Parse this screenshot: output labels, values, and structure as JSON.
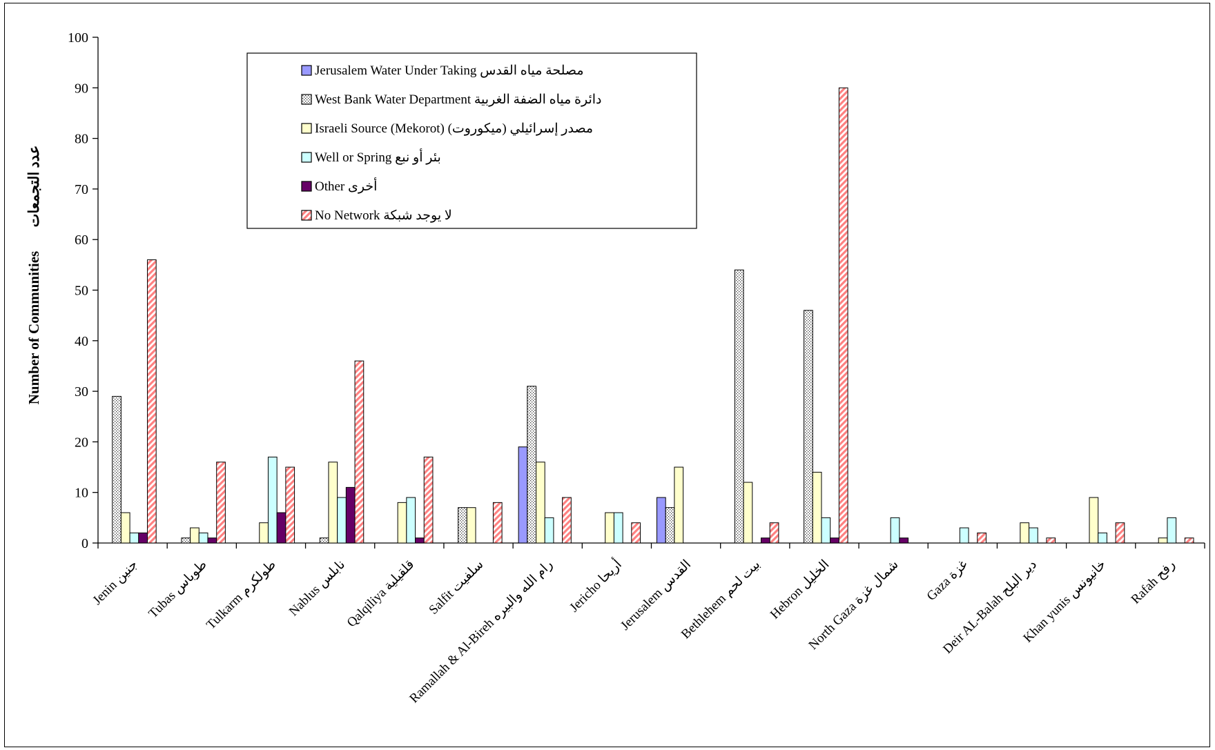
{
  "chart_data": {
    "type": "bar",
    "title": "",
    "xlabel": "",
    "ylabel": "Number of Communities",
    "ylabel_ar": "عدد التجمعات",
    "ylim": [
      0,
      100
    ],
    "yticks": [
      0,
      10,
      20,
      30,
      40,
      50,
      60,
      70,
      80,
      90,
      100
    ],
    "grid": false,
    "legend_position": "top-center",
    "categories": [
      "Jenin جنين",
      "Tubas طوباس",
      "Tulkarm طولكرم",
      "Nablus نابلس",
      "Qalqiliya قلقيلية",
      "Salfit سلفيت",
      "Ramallah & Al-Bireh رام الله والبيره",
      "Jericho أريحا",
      "Jerusalem القدس",
      "Bethlehem بيت لحم",
      "Hebron الخليل",
      "North Gaza شمال غزة",
      "Gaza غزة",
      "Deir AL-Balah دير البلح",
      "Khan yunis خانيونس",
      "Rafah رفح"
    ],
    "series": [
      {
        "name": "Jerusalem Water Under Taking مصلحة مياه القدس",
        "color": "#9999ff",
        "pattern": "solid",
        "values": [
          0,
          0,
          0,
          0,
          0,
          0,
          19,
          0,
          9,
          0,
          0,
          0,
          0,
          0,
          0,
          0
        ]
      },
      {
        "name": "West Bank Water Department دائرة مياه الضفة الغربية",
        "color": "#ffffff",
        "pattern": "dots",
        "values": [
          29,
          1,
          0,
          1,
          0,
          7,
          31,
          0,
          7,
          54,
          46,
          0,
          0,
          0,
          0,
          0
        ]
      },
      {
        "name": "Israeli Source (Mekorot) مصدر إسرائيلي (ميكوروت)",
        "color": "#ffffcc",
        "pattern": "solid",
        "values": [
          6,
          3,
          4,
          16,
          8,
          7,
          16,
          6,
          15,
          12,
          14,
          0,
          0,
          4,
          9,
          1
        ]
      },
      {
        "name": "Well or Spring بئر أو نبع",
        "color": "#ccffff",
        "pattern": "solid",
        "values": [
          2,
          2,
          17,
          9,
          9,
          0,
          5,
          6,
          0,
          0,
          5,
          5,
          3,
          3,
          2,
          5
        ]
      },
      {
        "name": "Other أخرى",
        "color": "#660066",
        "pattern": "solid",
        "values": [
          2,
          1,
          6,
          11,
          1,
          0,
          0,
          0,
          0,
          1,
          1,
          1,
          0,
          0,
          0,
          0
        ]
      },
      {
        "name": "No Network لا يوجد شبكة",
        "color": "#ff8080",
        "pattern": "stripes",
        "values": [
          56,
          16,
          15,
          36,
          17,
          8,
          9,
          4,
          0,
          4,
          90,
          0,
          2,
          1,
          4,
          1
        ]
      }
    ]
  }
}
